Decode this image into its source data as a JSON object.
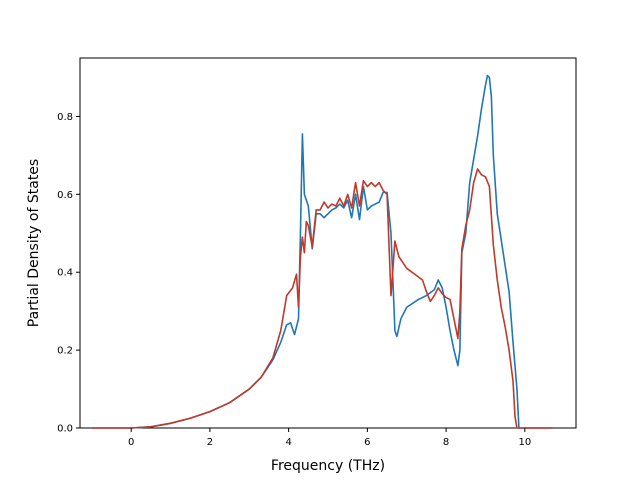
{
  "chart_data": {
    "type": "line",
    "title": "",
    "xlabel": "Frequency (THz)",
    "ylabel": "Partial Density of States",
    "xlim": [
      -1.3,
      11.3
    ],
    "ylim": [
      0.0,
      0.95
    ],
    "xticks": [
      0,
      2,
      4,
      6,
      8,
      10
    ],
    "yticks": [
      0.0,
      0.2,
      0.4,
      0.6,
      0.8
    ],
    "xtick_labels": [
      "0",
      "2",
      "4",
      "6",
      "8",
      "10"
    ],
    "ytick_labels": [
      "0.0",
      "0.2",
      "0.4",
      "0.6",
      "0.8"
    ],
    "grid": false,
    "legend": "none",
    "series": [
      {
        "color": "#1f77b4",
        "points": [
          [
            -1.0,
            0.0
          ],
          [
            0.0,
            0.0
          ],
          [
            0.5,
            0.003
          ],
          [
            1.0,
            0.012
          ],
          [
            1.5,
            0.025
          ],
          [
            2.0,
            0.042
          ],
          [
            2.5,
            0.065
          ],
          [
            3.0,
            0.1
          ],
          [
            3.3,
            0.13
          ],
          [
            3.6,
            0.175
          ],
          [
            3.8,
            0.22
          ],
          [
            3.95,
            0.265
          ],
          [
            4.05,
            0.27
          ],
          [
            4.15,
            0.24
          ],
          [
            4.25,
            0.28
          ],
          [
            4.3,
            0.5
          ],
          [
            4.35,
            0.755
          ],
          [
            4.4,
            0.6
          ],
          [
            4.5,
            0.57
          ],
          [
            4.6,
            0.46
          ],
          [
            4.7,
            0.55
          ],
          [
            4.8,
            0.55
          ],
          [
            4.9,
            0.54
          ],
          [
            5.0,
            0.55
          ],
          [
            5.1,
            0.56
          ],
          [
            5.2,
            0.565
          ],
          [
            5.3,
            0.575
          ],
          [
            5.4,
            0.565
          ],
          [
            5.5,
            0.585
          ],
          [
            5.6,
            0.54
          ],
          [
            5.7,
            0.6
          ],
          [
            5.8,
            0.535
          ],
          [
            5.9,
            0.62
          ],
          [
            6.0,
            0.56
          ],
          [
            6.1,
            0.57
          ],
          [
            6.2,
            0.575
          ],
          [
            6.3,
            0.58
          ],
          [
            6.4,
            0.605
          ],
          [
            6.5,
            0.605
          ],
          [
            6.6,
            0.5
          ],
          [
            6.7,
            0.25
          ],
          [
            6.75,
            0.235
          ],
          [
            6.85,
            0.28
          ],
          [
            7.0,
            0.31
          ],
          [
            7.3,
            0.33
          ],
          [
            7.5,
            0.34
          ],
          [
            7.7,
            0.355
          ],
          [
            7.8,
            0.38
          ],
          [
            7.9,
            0.36
          ],
          [
            8.0,
            0.31
          ],
          [
            8.1,
            0.25
          ],
          [
            8.2,
            0.2
          ],
          [
            8.3,
            0.16
          ],
          [
            8.35,
            0.2
          ],
          [
            8.4,
            0.45
          ],
          [
            8.5,
            0.5
          ],
          [
            8.6,
            0.63
          ],
          [
            8.7,
            0.69
          ],
          [
            8.8,
            0.75
          ],
          [
            8.9,
            0.82
          ],
          [
            9.0,
            0.88
          ],
          [
            9.05,
            0.905
          ],
          [
            9.1,
            0.9
          ],
          [
            9.15,
            0.85
          ],
          [
            9.2,
            0.7
          ],
          [
            9.3,
            0.55
          ],
          [
            9.45,
            0.45
          ],
          [
            9.6,
            0.35
          ],
          [
            9.7,
            0.22
          ],
          [
            9.8,
            0.1
          ],
          [
            9.85,
            0.0
          ],
          [
            10.7,
            0.0
          ]
        ]
      },
      {
        "color": "#c0392b",
        "points": [
          [
            -1.0,
            0.0
          ],
          [
            0.0,
            0.0
          ],
          [
            0.5,
            0.003
          ],
          [
            1.0,
            0.012
          ],
          [
            1.5,
            0.025
          ],
          [
            2.0,
            0.042
          ],
          [
            2.5,
            0.065
          ],
          [
            3.0,
            0.1
          ],
          [
            3.3,
            0.13
          ],
          [
            3.6,
            0.18
          ],
          [
            3.8,
            0.25
          ],
          [
            3.95,
            0.34
          ],
          [
            4.1,
            0.36
          ],
          [
            4.2,
            0.395
          ],
          [
            4.25,
            0.31
          ],
          [
            4.3,
            0.44
          ],
          [
            4.35,
            0.49
          ],
          [
            4.4,
            0.45
          ],
          [
            4.45,
            0.53
          ],
          [
            4.5,
            0.52
          ],
          [
            4.6,
            0.465
          ],
          [
            4.7,
            0.56
          ],
          [
            4.8,
            0.56
          ],
          [
            4.9,
            0.58
          ],
          [
            5.0,
            0.565
          ],
          [
            5.1,
            0.575
          ],
          [
            5.2,
            0.57
          ],
          [
            5.3,
            0.59
          ],
          [
            5.4,
            0.57
          ],
          [
            5.5,
            0.6
          ],
          [
            5.6,
            0.565
          ],
          [
            5.7,
            0.63
          ],
          [
            5.8,
            0.57
          ],
          [
            5.9,
            0.635
          ],
          [
            6.0,
            0.62
          ],
          [
            6.1,
            0.63
          ],
          [
            6.2,
            0.62
          ],
          [
            6.3,
            0.63
          ],
          [
            6.4,
            0.61
          ],
          [
            6.5,
            0.6
          ],
          [
            6.6,
            0.34
          ],
          [
            6.7,
            0.48
          ],
          [
            6.8,
            0.44
          ],
          [
            7.0,
            0.41
          ],
          [
            7.2,
            0.395
          ],
          [
            7.4,
            0.38
          ],
          [
            7.5,
            0.35
          ],
          [
            7.6,
            0.325
          ],
          [
            7.7,
            0.34
          ],
          [
            7.8,
            0.36
          ],
          [
            7.9,
            0.345
          ],
          [
            8.0,
            0.335
          ],
          [
            8.1,
            0.33
          ],
          [
            8.2,
            0.28
          ],
          [
            8.3,
            0.23
          ],
          [
            8.35,
            0.3
          ],
          [
            8.4,
            0.46
          ],
          [
            8.5,
            0.52
          ],
          [
            8.6,
            0.56
          ],
          [
            8.7,
            0.63
          ],
          [
            8.8,
            0.665
          ],
          [
            8.9,
            0.65
          ],
          [
            9.0,
            0.645
          ],
          [
            9.1,
            0.62
          ],
          [
            9.2,
            0.47
          ],
          [
            9.3,
            0.38
          ],
          [
            9.4,
            0.31
          ],
          [
            9.5,
            0.26
          ],
          [
            9.6,
            0.2
          ],
          [
            9.7,
            0.12
          ],
          [
            9.75,
            0.03
          ],
          [
            9.8,
            0.0
          ],
          [
            10.7,
            0.0
          ]
        ]
      }
    ]
  }
}
